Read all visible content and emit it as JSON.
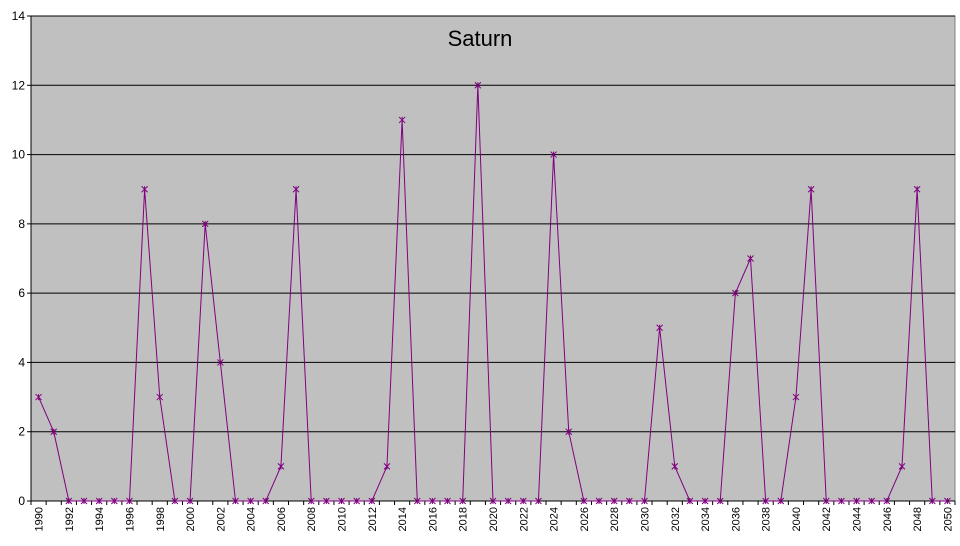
{
  "chart_data": {
    "type": "line",
    "title": "Saturn",
    "categories": [
      "1990",
      null,
      "1992",
      null,
      "1994",
      null,
      "1996",
      null,
      "1998",
      null,
      "2000",
      null,
      "2002",
      null,
      "2004",
      null,
      "2006",
      null,
      "2008",
      null,
      "2010",
      null,
      "2012",
      null,
      "2014",
      null,
      "2016",
      null,
      "2018",
      null,
      "2020",
      null,
      "2022",
      null,
      "2024",
      null,
      "2026",
      null,
      "2028",
      null,
      "2030",
      null,
      "2032",
      null,
      "2034",
      null,
      "2036",
      null,
      "2038",
      null,
      "2040",
      null,
      "2042",
      null,
      "2044",
      null,
      "2046",
      null,
      "2048",
      null,
      "2050"
    ],
    "values": [
      3,
      2,
      0,
      0,
      0,
      0,
      0,
      9,
      3,
      0,
      0,
      8,
      4,
      0,
      0,
      0,
      1,
      9,
      0,
      0,
      0,
      0,
      0,
      1,
      11,
      0,
      0,
      0,
      0,
      12,
      0,
      0,
      0,
      0,
      10,
      2,
      0,
      0,
      0,
      0,
      0,
      5,
      1,
      0,
      0,
      0,
      6,
      7,
      0,
      0,
      3,
      9,
      0,
      0,
      0,
      0,
      0,
      1,
      9,
      0,
      0
    ],
    "color": "#800080",
    "ylim": [
      0,
      14
    ],
    "yticks": [
      0,
      2,
      4,
      6,
      8,
      10,
      12,
      14
    ],
    "grid": true
  }
}
